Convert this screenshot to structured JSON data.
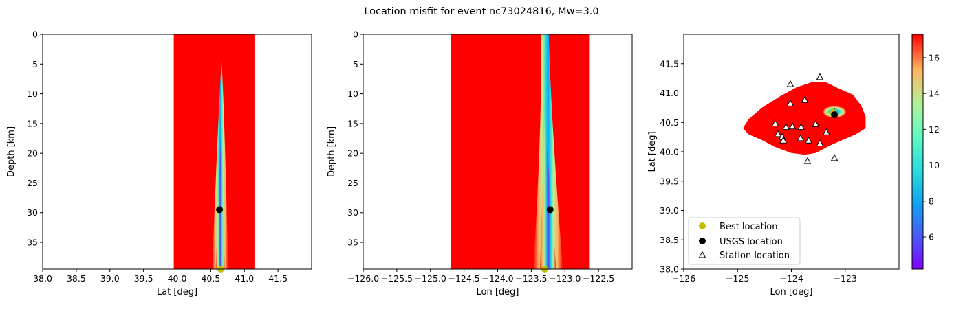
{
  "figure_title": "Location misfit for event nc73024816, Mw=3.0",
  "colors": {
    "misfit_high": "#ff0000",
    "best_location": "#bfbf00",
    "usgs_location": "#000000",
    "station_fill": "#ffffff",
    "station_edge": "#000000"
  },
  "colorbar": {
    "colormap": "rainbow",
    "min": 4.2,
    "max": 17.3,
    "ticks": [
      "6",
      "8",
      "10",
      "12",
      "14",
      "16"
    ],
    "tick_values": [
      6,
      8,
      10,
      12,
      14,
      16
    ]
  },
  "legend": {
    "placement": "lower-left",
    "entries": [
      {
        "label": "Best location",
        "marker": "circle",
        "color": "#bfbf00"
      },
      {
        "label": "USGS location",
        "marker": "circle",
        "color": "#000000"
      },
      {
        "label": "Station location",
        "marker": "triangle",
        "color": "#ffffff"
      }
    ]
  },
  "chart_data": [
    {
      "type": "heatmap",
      "title": "",
      "xlabel": "Lat [deg]",
      "ylabel": "Depth [km]",
      "xlim": [
        38.0,
        42.0
      ],
      "ylim": [
        39.5,
        0
      ],
      "xticks": [
        38.0,
        38.5,
        39.0,
        39.5,
        40.0,
        40.5,
        41.0,
        41.5
      ],
      "xtick_labels": [
        "38.0",
        "38.5",
        "39.0",
        "39.5",
        "40.0",
        "40.5",
        "41.0",
        "41.5"
      ],
      "yticks": [
        0,
        5,
        10,
        15,
        20,
        25,
        30,
        35
      ],
      "ytick_labels": [
        "0",
        "5",
        "10",
        "15",
        "20",
        "25",
        "30",
        "35"
      ],
      "high_misfit_band": [
        39.95,
        41.15
      ],
      "low_misfit_trough": {
        "top_depth": 4.5,
        "center_top": 40.66,
        "center_bottom": 40.64,
        "halfwidth_top": 0.02,
        "halfwidth_bottom": 0.12
      },
      "usgs_location": {
        "x": 40.63,
        "y": 29.5
      },
      "best_location": {
        "x": 40.65,
        "y": 39.5
      }
    },
    {
      "type": "heatmap",
      "title": "",
      "xlabel": "Lon [deg]",
      "ylabel": "Depth [km]",
      "xlim": [
        -126.0,
        -122.0
      ],
      "ylim": [
        39.5,
        0
      ],
      "xticks": [
        -126.0,
        -125.5,
        -125.0,
        -124.5,
        -124.0,
        -123.5,
        -123.0,
        -122.5
      ],
      "xtick_labels": [
        "−126.0",
        "−125.5",
        "−125.0",
        "−124.5",
        "−124.0",
        "−123.5",
        "−123.0",
        "−122.5"
      ],
      "yticks": [
        0,
        5,
        10,
        15,
        20,
        25,
        30,
        35
      ],
      "ytick_labels": [
        "0",
        "5",
        "10",
        "15",
        "20",
        "25",
        "30",
        "35"
      ],
      "high_misfit_band": [
        -124.7,
        -122.63
      ],
      "low_misfit_trough": {
        "top_depth": 0,
        "center_top": -123.3,
        "center_bottom": -123.25,
        "halfwidth_top": 0.06,
        "halfwidth_bottom": 0.22
      },
      "usgs_location": {
        "x": -123.22,
        "y": 29.5
      },
      "best_location": {
        "x": -123.3,
        "y": 39.5
      }
    },
    {
      "type": "heatmap",
      "title": "",
      "xlabel": "Lon [deg]",
      "ylabel": "Lat [deg]",
      "xlim": [
        -126.0,
        -122.0
      ],
      "ylim": [
        38.0,
        42.0
      ],
      "xticks": [
        -126,
        -125,
        -124,
        -123
      ],
      "xtick_labels": [
        "−126",
        "−125",
        "−124",
        "−123"
      ],
      "yticks": [
        38.0,
        38.5,
        39.0,
        39.5,
        40.0,
        40.5,
        41.0,
        41.5
      ],
      "ytick_labels": [
        "38.0",
        "38.5",
        "39.0",
        "39.5",
        "40.0",
        "40.5",
        "41.0",
        "41.5"
      ],
      "misfit_region_outline": [
        [
          -124.9,
          40.4
        ],
        [
          -124.8,
          40.55
        ],
        [
          -124.55,
          40.75
        ],
        [
          -124.2,
          40.95
        ],
        [
          -123.9,
          41.1
        ],
        [
          -123.6,
          41.19
        ],
        [
          -123.35,
          41.18
        ],
        [
          -123.1,
          41.07
        ],
        [
          -122.85,
          40.97
        ],
        [
          -122.7,
          40.78
        ],
        [
          -122.62,
          40.6
        ],
        [
          -122.62,
          40.4
        ],
        [
          -122.8,
          40.3
        ],
        [
          -123.05,
          40.2
        ],
        [
          -123.3,
          40.1
        ],
        [
          -123.55,
          39.98
        ],
        [
          -123.75,
          39.95
        ],
        [
          -124.0,
          39.98
        ],
        [
          -124.3,
          40.08
        ],
        [
          -124.55,
          40.2
        ],
        [
          -124.8,
          40.3
        ]
      ],
      "low_misfit_spot": {
        "lon": -123.2,
        "lat": 40.68,
        "rx": 0.22,
        "ry": 0.1
      },
      "usgs_location": {
        "x": -123.2,
        "y": 40.63
      },
      "best_location": {
        "x": -123.22,
        "y": 40.67
      },
      "stations": [
        [
          -124.02,
          41.15
        ],
        [
          -123.47,
          41.27
        ],
        [
          -123.75,
          40.88
        ],
        [
          -124.02,
          40.82
        ],
        [
          -123.2,
          40.67
        ],
        [
          -124.3,
          40.48
        ],
        [
          -124.1,
          40.42
        ],
        [
          -123.98,
          40.43
        ],
        [
          -123.82,
          40.42
        ],
        [
          -123.55,
          40.47
        ],
        [
          -123.35,
          40.33
        ],
        [
          -124.25,
          40.3
        ],
        [
          -124.17,
          40.25
        ],
        [
          -124.15,
          40.19
        ],
        [
          -123.83,
          40.23
        ],
        [
          -123.68,
          40.19
        ],
        [
          -123.47,
          40.14
        ],
        [
          -123.7,
          39.84
        ],
        [
          -123.2,
          39.89
        ]
      ]
    }
  ]
}
